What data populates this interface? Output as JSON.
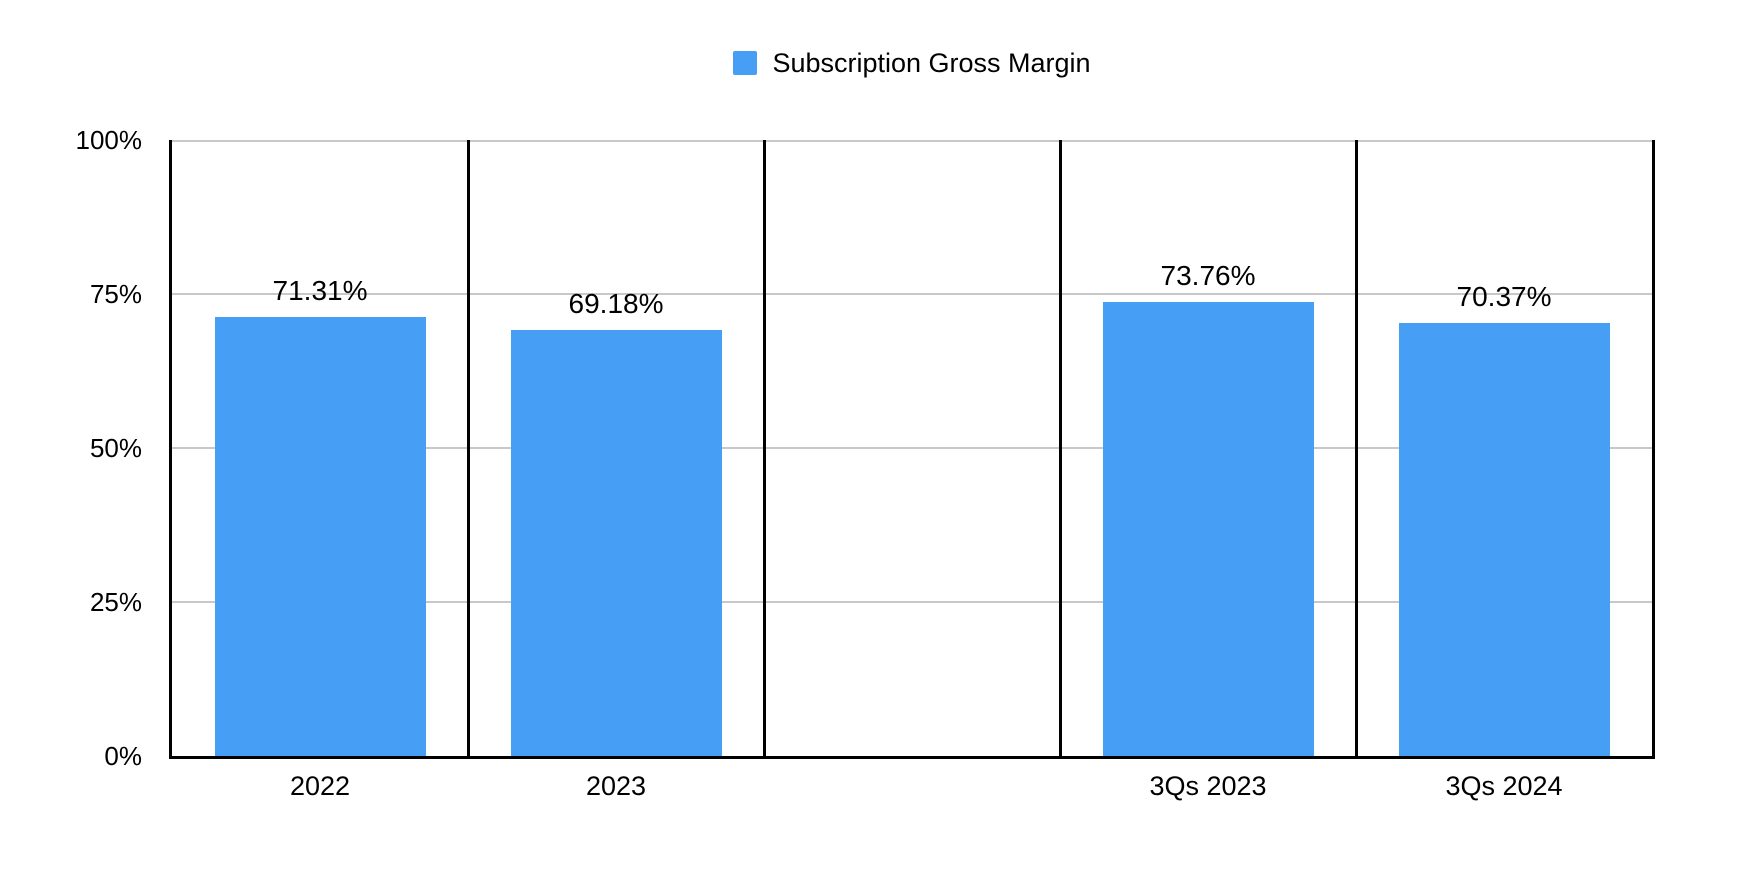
{
  "chart_data": {
    "type": "bar",
    "title": "",
    "legend": {
      "label": "Subscription Gross Margin",
      "color": "#479EF5",
      "position": "top-center"
    },
    "categories": [
      "2022",
      "2023",
      "",
      "3Qs 2023",
      "3Qs 2024"
    ],
    "series": [
      {
        "name": "Subscription Gross Margin",
        "values": [
          71.31,
          69.18,
          null,
          73.76,
          70.37
        ],
        "data_labels": [
          "71.31%",
          "69.18%",
          null,
          "73.76%",
          "70.37%"
        ],
        "color": "#479EF5"
      }
    ],
    "xlabel": "",
    "ylabel": "",
    "ylim": [
      0,
      100
    ],
    "yticks": [
      {
        "value": 0,
        "label": "0%"
      },
      {
        "value": 25,
        "label": "25%"
      },
      {
        "value": 50,
        "label": "50%"
      },
      {
        "value": 75,
        "label": "75%"
      },
      {
        "value": 100,
        "label": "100%"
      }
    ],
    "grid": true,
    "grid_color": "#c8c8c8",
    "axis_color": "#000000",
    "text_color": "#000000",
    "background": "#ffffff",
    "panel_dividers": true
  }
}
